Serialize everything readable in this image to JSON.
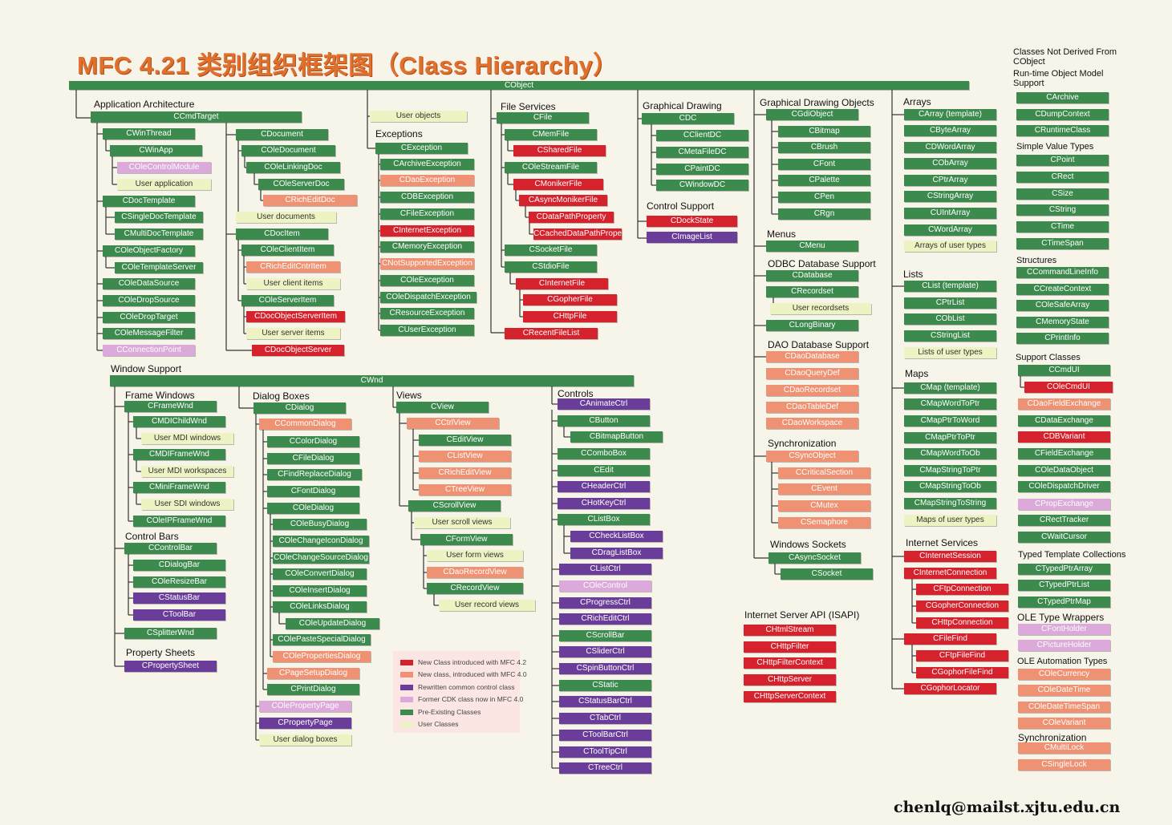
{
  "title": "MFC 4.21 类别组织框架图（Class Hierarchy）",
  "footer_email": "chenlq@mailst.xjtu.edu.cn",
  "colors": {
    "existing": "#3d8a4e",
    "new42": "#d5222d",
    "new40": "#ef9273",
    "rewritten": "#6a3d9a",
    "cdk": "#dba9da",
    "user": "#eef3c4"
  },
  "legend": [
    {
      "kind": "new42",
      "label": "New Class introduced with MFC 4.2"
    },
    {
      "kind": "new40",
      "label": "New class, introduced with MFC 4.0"
    },
    {
      "kind": "rewritten",
      "label": "Rewritten common control class"
    },
    {
      "kind": "cdk",
      "label": "Former CDK class now in MFC 4.0"
    },
    {
      "kind": "existing",
      "label": "Pre-Existing Classes"
    },
    {
      "kind": "user",
      "label": "User Classes"
    }
  ],
  "headers": [
    "Classes Not Derived From CObject",
    "Run-time Object Model Support",
    "Application Architecture",
    "Exceptions",
    "File Services",
    "Graphical Drawing",
    "Graphical Drawing Objects",
    "Arrays",
    "Control Support",
    "Menus",
    "ODBC Database Support",
    "Lists",
    "DAO Database Support",
    "Maps",
    "Synchronization",
    "Windows Sockets",
    "Internet Services",
    "Internet Server API (ISAPI)",
    "Window Support",
    "Frame Windows",
    "Dialog Boxes",
    "Views",
    "Controls",
    "Control Bars",
    "Property Sheets",
    "Simple Value Types",
    "Structures",
    "Support Classes",
    "Typed Template Collections",
    "OLE Type Wrappers",
    "OLE Automation Types",
    "Synchronization"
  ],
  "classes": [
    "CObject",
    "CCmdTarget",
    "User objects",
    "CFile",
    "CDC",
    "CGdiObject",
    "CWnd",
    "CWinThread",
    "CWinApp",
    "COleControlModule",
    "User application",
    "CDocTemplate",
    "CSingleDocTemplate",
    "CMultiDocTemplate",
    "COleObjectFactory",
    "COleTemplateServer",
    "COleDataSource",
    "COleDropSource",
    "COleDropTarget",
    "COleMessageFilter",
    "CConnectionPoint",
    "CDocument",
    "COleDocument",
    "COleLinkingDoc",
    "COleServerDoc",
    "CRichEditDoc",
    "User documents",
    "CDocItem",
    "COleClientItem",
    "CRichEditCntrItem",
    "User client items",
    "COleServerItem",
    "CDocObjectServerItem",
    "User server items",
    "CDocObjectServer",
    "CException",
    "CArchiveException",
    "CDaoException",
    "CDBException",
    "CFileException",
    "CInternetException",
    "CMemoryException",
    "CNotSupportedException",
    "COleException",
    "COleDispatchException",
    "CResourceException",
    "CUserException",
    "CMemFile",
    "CSharedFile",
    "COleStreamFile",
    "CMonikerFile",
    "CAsyncMonikerFile",
    "CDataPathProperty",
    "CCachedDataPathProperty",
    "CSocketFile",
    "CStdioFile",
    "CInternetFile",
    "CGopherFile",
    "CHttpFile",
    "CRecentFileList",
    "CClientDC",
    "CMetaFileDC",
    "CPaintDC",
    "CWindowDC",
    "CDockState",
    "CImageList",
    "CBitmap",
    "CBrush",
    "CFont",
    "CPalette",
    "CPen",
    "CRgn",
    "CMenu",
    "CDatabase",
    "CRecordset",
    "User recordsets",
    "CLongBinary",
    "CDaoDatabase",
    "CDaoQueryDef",
    "CDaoRecordset",
    "CDaoTableDef",
    "CDaoWorkspace",
    "CSyncObject",
    "CCriticalSection",
    "CEvent",
    "CMutex",
    "CSemaphore",
    "CAsyncSocket",
    "CSocket",
    "CHtmlStream",
    "CHttpFilter",
    "CHttpFilterContext",
    "CHttpServer",
    "CHttpServerContext",
    "CArray (template)",
    "CByteArray",
    "CDWordArray",
    "CObArray",
    "CPtrArray",
    "CStringArray",
    "CUIntArray",
    "CWordArray",
    "Arrays of user types",
    "CList (template)",
    "CPtrList",
    "CObList",
    "CStringList",
    "Lists of user types",
    "CMap (template)",
    "CMapWordToPtr",
    "CMapPtrToWord",
    "CMapPtrToPtr",
    "CMapWordToOb",
    "CMapStringToPtr",
    "CMapStringToOb",
    "CMapStringToString",
    "Maps of user types",
    "CInternetSession",
    "CInternetConnection",
    "CFtpConnection",
    "CGopherConnection",
    "CHttpConnection",
    "CFileFind",
    "CFtpFileFind",
    "CGophorFileFind",
    "CGophorLocator",
    "CArchive",
    "CDumpContext",
    "CRuntimeClass",
    "CPoint",
    "CRect",
    "CSize",
    "CString",
    "CTime",
    "CTimeSpan",
    "CCommandLineInfo",
    "CCreateContext",
    "COleSafeArray",
    "CMemoryState",
    "CPrintInfo",
    "CCmdUI",
    "COleCmdUI",
    "CDaoFieldExchange",
    "CDataExchange",
    "CDBVariant",
    "CFieldExchange",
    "COleDataObject",
    "COleDispatchDriver",
    "CPropExchange",
    "CRectTracker",
    "CWaitCursor",
    "CTypedPtrArray",
    "CTypedPtrList",
    "CTypedPtrMap",
    "CFontHolder",
    "CPictureHolder",
    "COleCurrency",
    "COleDateTime",
    "COleDateTimeSpan",
    "COleVariant",
    "CMultiLock",
    "CSingleLock",
    "CFrameWnd",
    "CMDIChildWnd",
    "User MDI windows",
    "CMDIFrameWnd",
    "User MDI workspaces",
    "CMiniFrameWnd",
    "User SDI windows",
    "COleIPFrameWnd",
    "CControlBar",
    "CDialogBar",
    "COleResizeBar",
    "CStatusBar",
    "CToolBar",
    "CSplitterWnd",
    "CPropertySheet",
    "CDialog",
    "CCommonDialog",
    "CColorDialog",
    "CFileDialog",
    "CFindReplaceDialog",
    "CFontDialog",
    "COleDialog",
    "COleBusyDialog",
    "COleChangeIconDialog",
    "COleChangeSourceDialog",
    "COleConvertDialog",
    "COleInsertDialog",
    "COleLinksDialog",
    "COleUpdateDialog",
    "COlePasteSpecialDialog",
    "COlePropertiesDialog",
    "CPageSetupDialog",
    "CPrintDialog",
    "COlePropertyPage",
    "CPropertyPage",
    "User dialog boxes",
    "CView",
    "CCtrlView",
    "CEditView",
    "CListView",
    "CRichEditView",
    "CTreeView",
    "CScrollView",
    "User scroll views",
    "CFormView",
    "User form views",
    "CDaoRecordView",
    "CRecordView",
    "User record views",
    "CAnimateCtrl",
    "CButton",
    "CBitmapButton",
    "CComboBox",
    "CEdit",
    "CHeaderCtrl",
    "CHotKeyCtrl",
    "CListBox",
    "CCheckListBox",
    "CDragListBox",
    "CListCtrl",
    "COleControl",
    "CProgressCtrl",
    "CRichEditCtrl",
    "CScrollBar",
    "CSliderCtrl",
    "CSpinButtonCtrl",
    "CStatic",
    "CStatusBarCtrl",
    "CTabCtrl",
    "CToolBarCtrl",
    "CToolTipCtrl",
    "CTreeCtrl"
  ]
}
